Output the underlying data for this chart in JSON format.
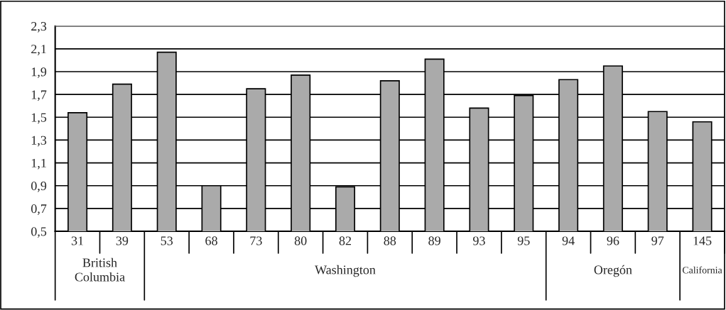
{
  "chart_data": {
    "type": "bar",
    "categories": [
      "31",
      "39",
      "53",
      "68",
      "73",
      "80",
      "82",
      "88",
      "89",
      "93",
      "95",
      "94",
      "96",
      "97",
      "145"
    ],
    "values": [
      1.54,
      1.79,
      2.07,
      0.9,
      1.75,
      1.87,
      0.89,
      1.82,
      2.01,
      1.58,
      1.69,
      1.83,
      1.95,
      1.55,
      1.46
    ],
    "color": "#aaaaaa",
    "ylim": [
      0.5,
      2.3
    ],
    "yticks": [
      {
        "value": 0.5,
        "label": "0,5"
      },
      {
        "value": 0.7,
        "label": "0,7"
      },
      {
        "value": 0.9,
        "label": "0,9"
      },
      {
        "value": 1.1,
        "label": "1,1"
      },
      {
        "value": 1.3,
        "label": "1,3"
      },
      {
        "value": 1.5,
        "label": "1,5"
      },
      {
        "value": 1.7,
        "label": "1,7"
      },
      {
        "value": 1.9,
        "label": "1,9"
      },
      {
        "value": 2.1,
        "label": "2,1"
      },
      {
        "value": 2.3,
        "label": "2,3"
      }
    ],
    "grid": "y",
    "annotations": [
      "British\nColumbia",
      "Washington",
      "Oregón",
      "California"
    ]
  }
}
